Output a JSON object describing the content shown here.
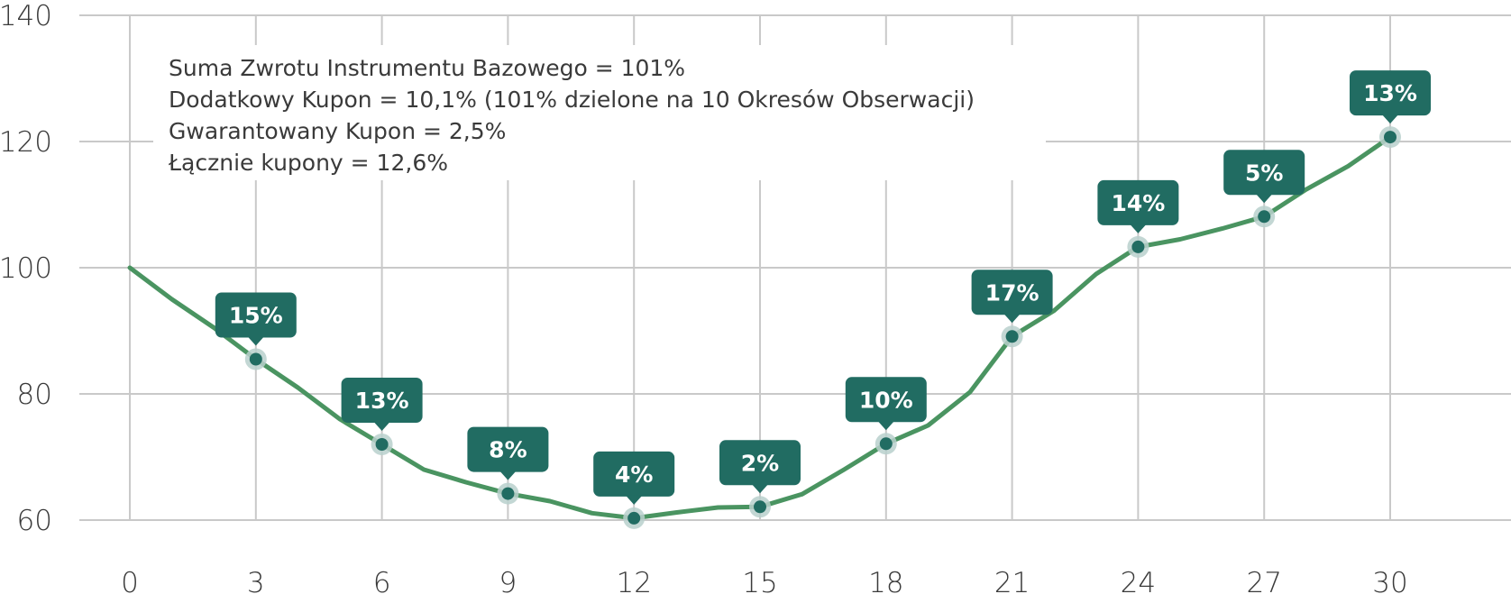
{
  "chart_data": {
    "type": "line",
    "x": [
      0,
      1,
      2,
      3,
      4,
      5,
      6,
      7,
      8,
      9,
      10,
      11,
      12,
      13,
      14,
      15,
      16,
      17,
      18,
      19,
      20,
      21,
      22,
      23,
      24,
      25,
      26,
      27,
      28,
      29,
      30
    ],
    "series": [
      {
        "values": [
          100,
          95,
          90.5,
          85.5,
          81,
          76,
          72,
          68,
          66,
          64.2,
          63,
          61.1,
          60.3,
          61.2,
          62,
          62.1,
          64.1,
          68,
          72.1,
          75,
          80.3,
          89.1,
          93.2,
          99,
          103.3,
          104.5,
          106.2,
          108.1,
          112.4,
          116.1,
          120.7
        ],
        "color": "#4a9461"
      }
    ],
    "observations": [
      {
        "x": 3,
        "y": 85.5,
        "label": "15%"
      },
      {
        "x": 6,
        "y": 72,
        "label": "13%"
      },
      {
        "x": 9,
        "y": 64.2,
        "label": "8%"
      },
      {
        "x": 12,
        "y": 60.3,
        "label": "4%"
      },
      {
        "x": 15,
        "y": 62.1,
        "label": "2%"
      },
      {
        "x": 18,
        "y": 72.1,
        "label": "10%"
      },
      {
        "x": 21,
        "y": 89.1,
        "label": "17%"
      },
      {
        "x": 24,
        "y": 103.3,
        "label": "14%"
      },
      {
        "x": 27,
        "y": 108.1,
        "label": "5%"
      },
      {
        "x": 30,
        "y": 120.7,
        "label": "13%"
      }
    ],
    "xticks": [
      0,
      3,
      6,
      9,
      12,
      15,
      18,
      21,
      24,
      27,
      30
    ],
    "yticks": [
      60,
      80,
      100,
      120,
      140
    ],
    "xlim": [
      0,
      30
    ],
    "ylim": [
      60,
      140
    ],
    "grid": true,
    "annotation_lines": [
      "Suma Zwrotu Instrumentu Bazowego = 101%",
      "Dodatkowy Kupon = 10,1% (101% dzielone na 10 Okresów Obserwacji)",
      "Gwarantowany Kupon = 2,5%",
      "Łącznie kupony = 12,6%"
    ],
    "colors": {
      "line": "#4a9461",
      "marker": "#216c62",
      "marker_halo": "#b8d0cc",
      "label_bg": "#216c62",
      "grid": "#c9c9c9"
    }
  }
}
